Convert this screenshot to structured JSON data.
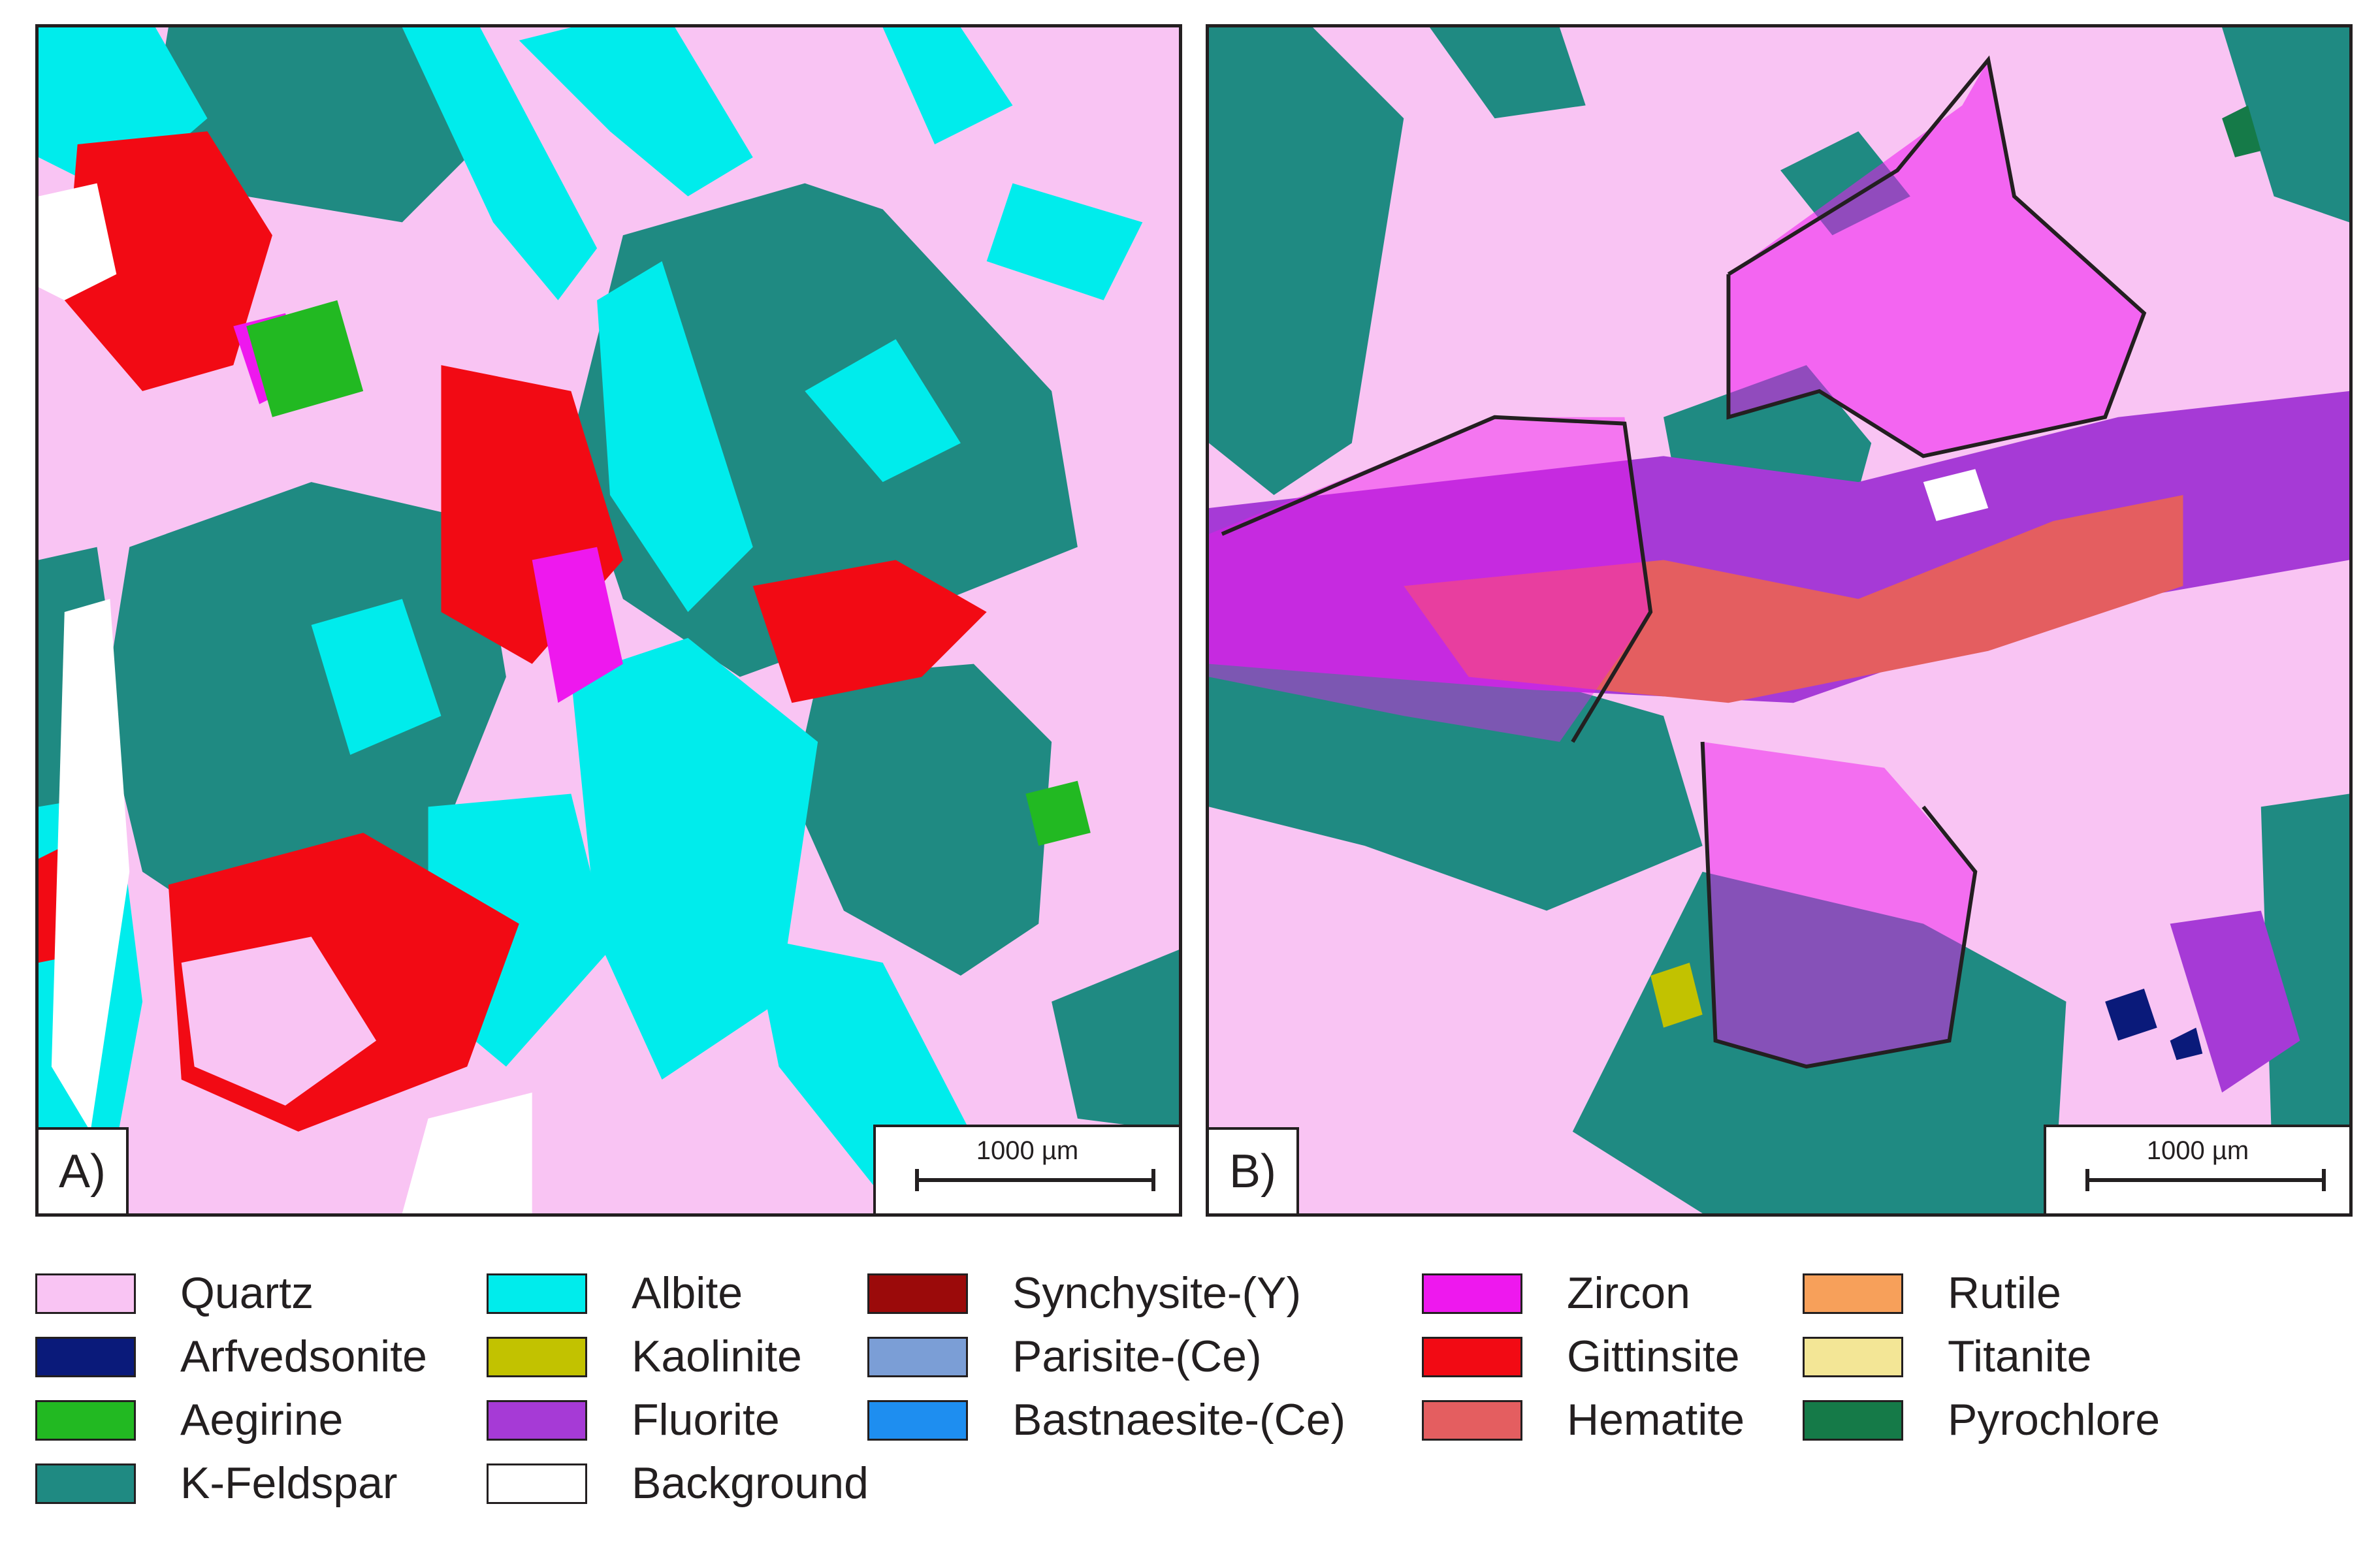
{
  "panels": [
    {
      "id": "A",
      "label": "A)",
      "scalebar": "1000 µm"
    },
    {
      "id": "B",
      "label": "B)",
      "scalebar": "1000 µm"
    }
  ],
  "legend": [
    {
      "name": "Quartz",
      "color": "#f9c4f3"
    },
    {
      "name": "Arfvedsonite",
      "color": "#0a1a7a"
    },
    {
      "name": "Aegirine",
      "color": "#22b922"
    },
    {
      "name": "K-Feldspar",
      "color": "#1f8a82"
    },
    {
      "name": "Albite",
      "color": "#00ecec"
    },
    {
      "name": "Kaolinite",
      "color": "#c2c200"
    },
    {
      "name": "Fluorite",
      "color": "#a63ad6"
    },
    {
      "name": "Background",
      "color": "#ffffff"
    },
    {
      "name": "Synchysite-(Y)",
      "color": "#9b0a0a"
    },
    {
      "name": "Parisite-(Ce)",
      "color": "#7b9ed6"
    },
    {
      "name": "Bastnaesite-(Ce)",
      "color": "#1e8ef0"
    },
    {
      "name": "Zircon",
      "color": "#ee18ee"
    },
    {
      "name": "Gittinsite",
      "color": "#f20a14"
    },
    {
      "name": "Hematite",
      "color": "#e45e60"
    },
    {
      "name": "Rutile",
      "color": "#f7a05a"
    },
    {
      "name": "Titanite",
      "color": "#f3e696"
    },
    {
      "name": "Pyrochlore",
      "color": "#157a48"
    }
  ]
}
